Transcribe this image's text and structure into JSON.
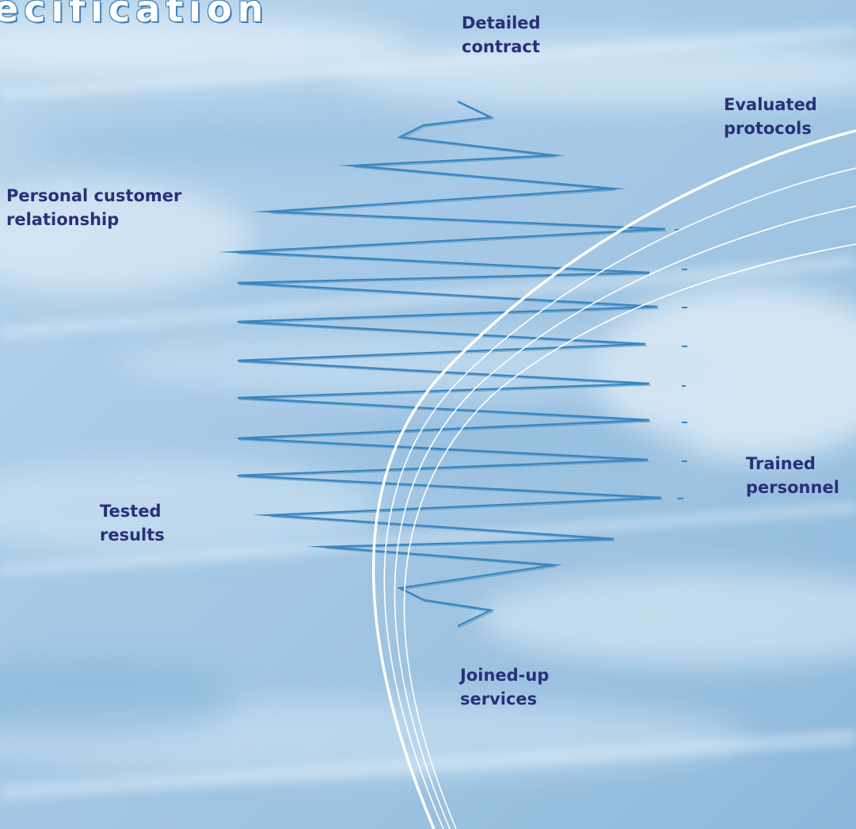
{
  "title": "ecification",
  "labels": {
    "detailed_contract": [
      "Detailed",
      "contract"
    ],
    "evaluated_protocols": [
      "Evaluated",
      "protocols"
    ],
    "personal_customer_relationship": [
      "Personal customer",
      "relationship"
    ],
    "tested_results": [
      "Tested",
      "results"
    ],
    "trained_personnel": [
      "Trained",
      "personnel"
    ],
    "joined_up_services": [
      "Joined-up",
      "services"
    ]
  },
  "colors": {
    "label_text": "#2a2f7a",
    "zigzag": "#3a86bf",
    "arc": "#ffffff",
    "sky_light": "#dcebf6",
    "sky_dark": "#7fb0d6"
  }
}
